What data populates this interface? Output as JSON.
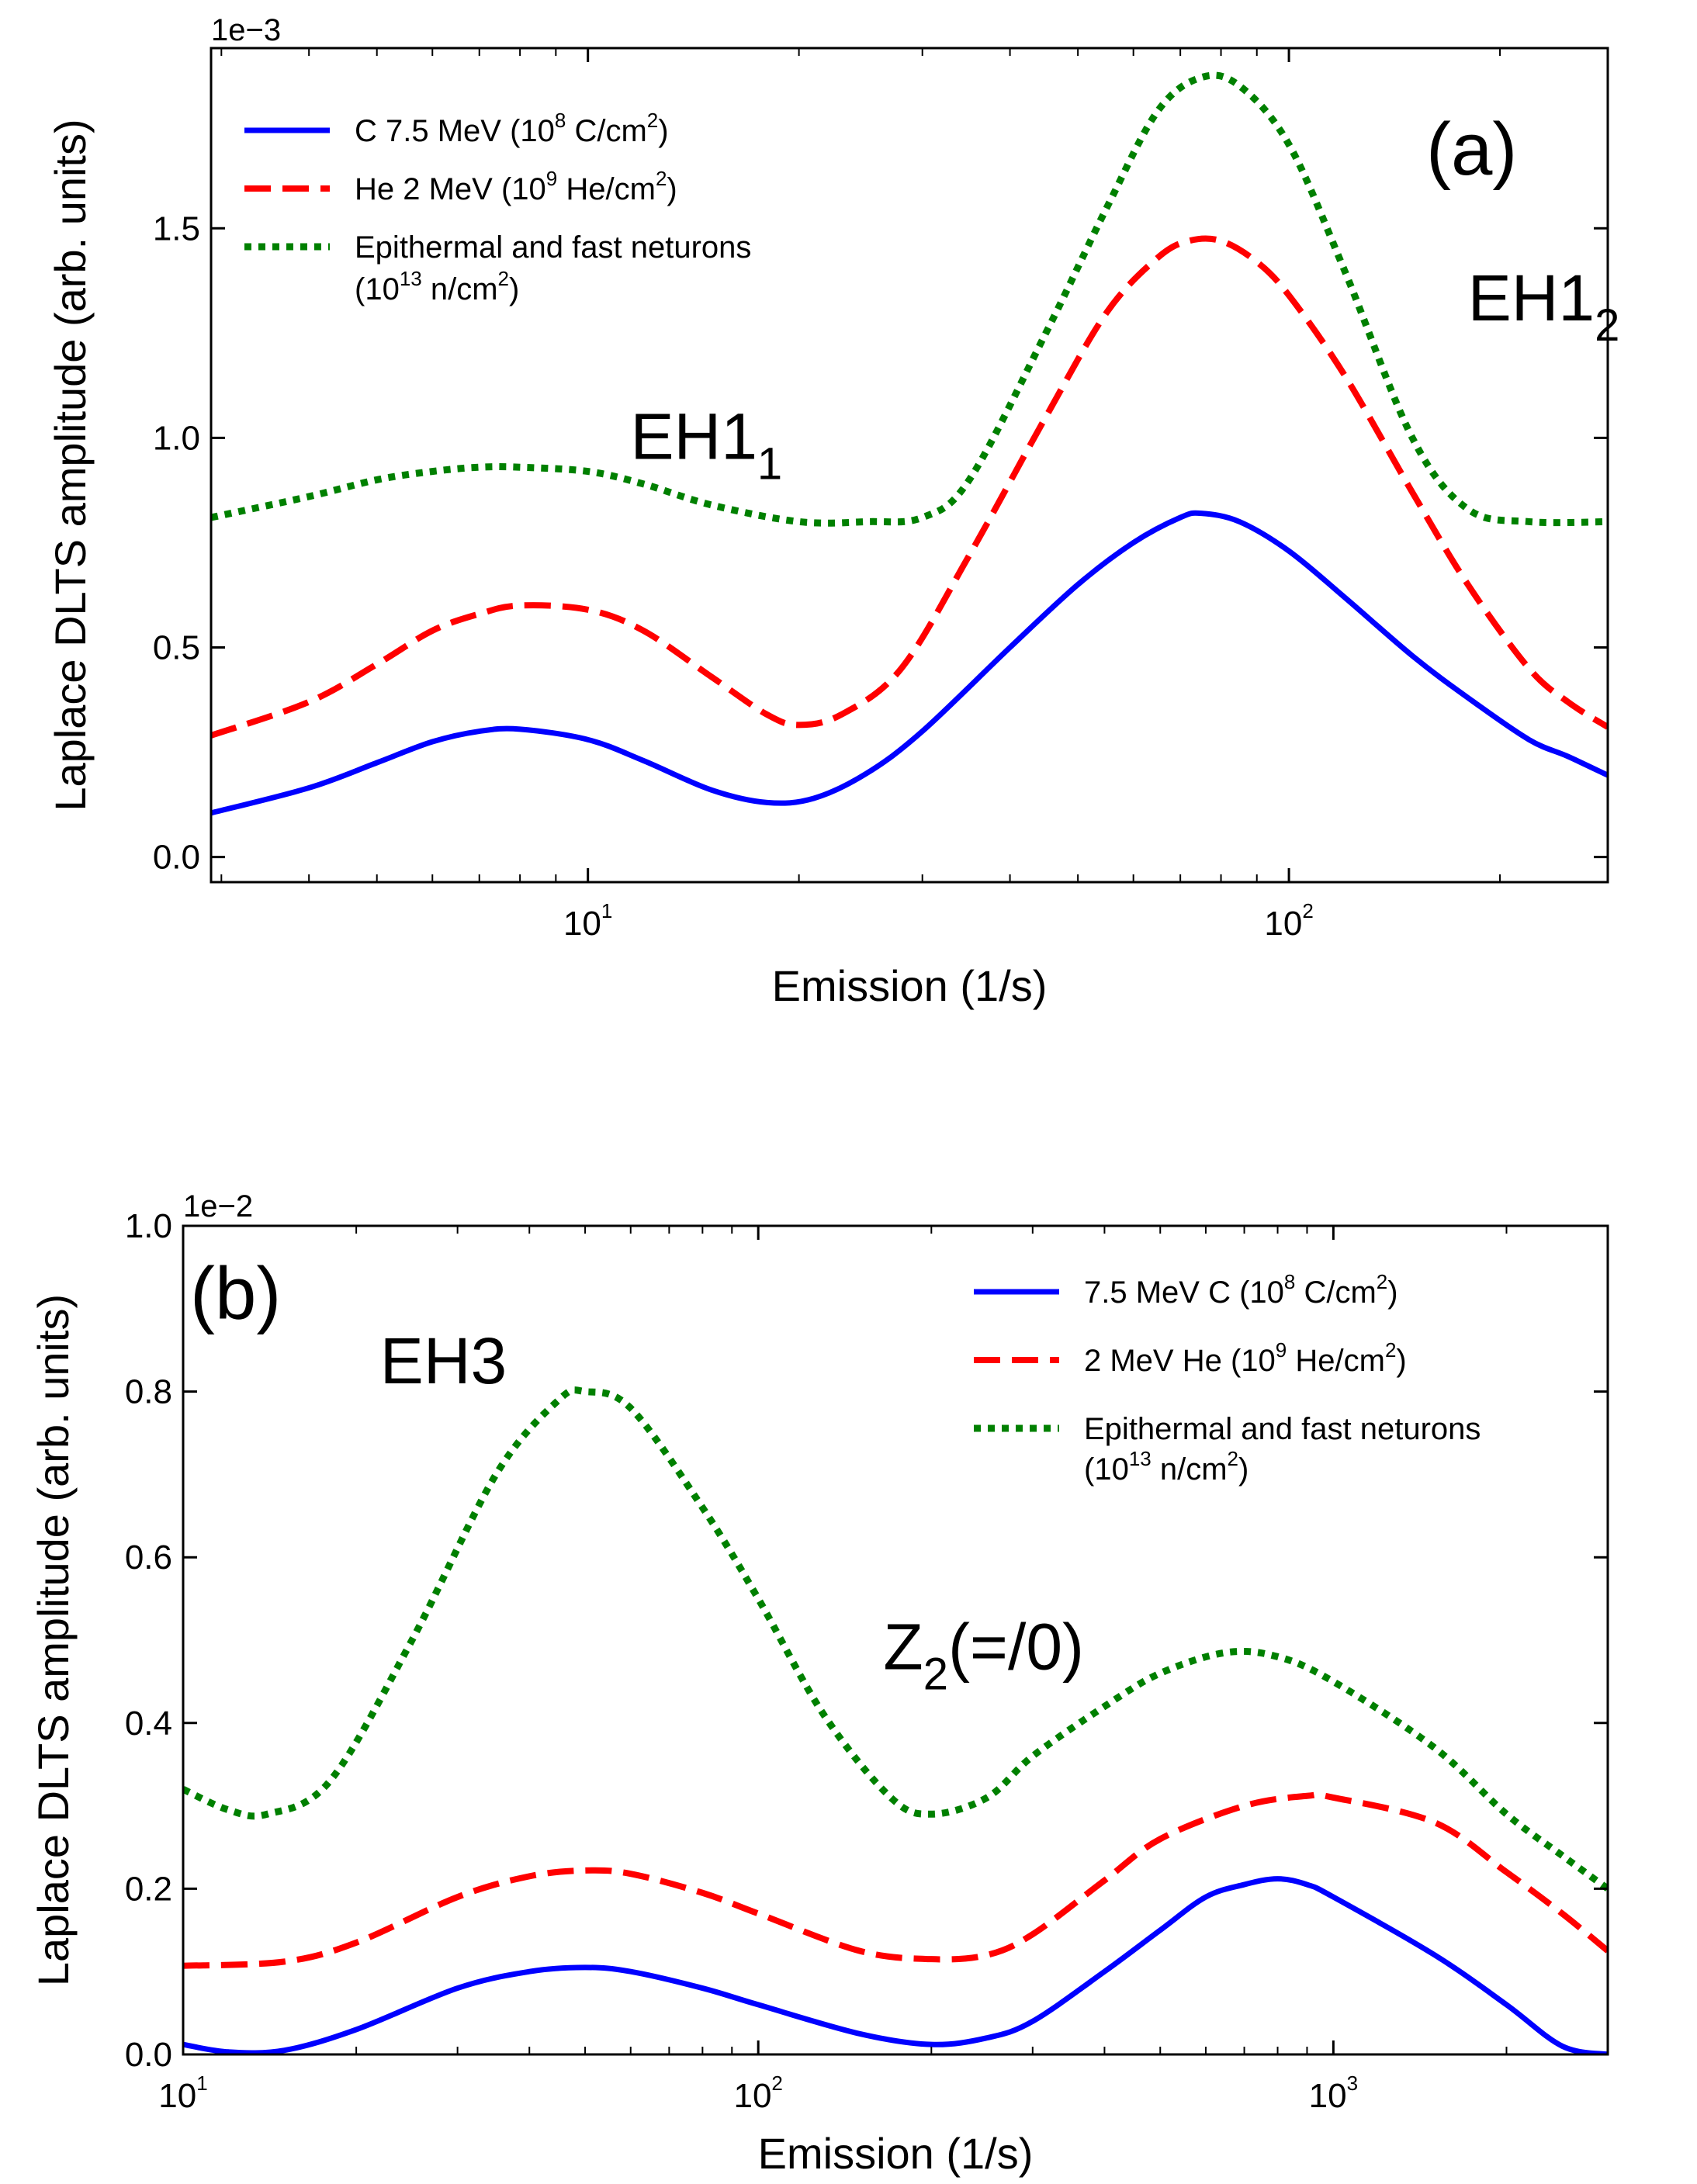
{
  "chart_data": [
    {
      "id": "a",
      "type": "line",
      "panel_label": "(a)",
      "xlabel": "Emission (1/s)",
      "ylabel": "Laplace DLTS amplitude (arb. units)",
      "xscale": "log",
      "xlim": [
        2.9,
        285
      ],
      "ylim": [
        -0.06,
        1.93
      ],
      "y_offset_text": "1e−3",
      "x_ticks": [
        {
          "value": 10,
          "base": "10",
          "exp": "1"
        },
        {
          "value": 100,
          "base": "10",
          "exp": "2"
        }
      ],
      "y_ticks": [
        {
          "value": 0.0,
          "label": "0.0"
        },
        {
          "value": 0.5,
          "label": "0.5"
        },
        {
          "value": 1.0,
          "label": "1.0"
        },
        {
          "value": 1.5,
          "label": "1.5"
        }
      ],
      "legend_position": "top-left",
      "annotations": [
        {
          "id": "eh1-1",
          "base": "EH1",
          "sub": "1",
          "x": 11.5,
          "y": 0.95
        },
        {
          "id": "eh1-2",
          "base": "EH1",
          "sub": "2",
          "x": 180,
          "y": 1.28
        }
      ],
      "series": [
        {
          "id": "c",
          "color": "#0000ff",
          "style": "solid",
          "legend_lines": [
            [
              {
                "t": "C 7.5 MeV (10"
              },
              {
                "t": "8",
                "sup": true
              },
              {
                "t": " C/cm"
              },
              {
                "t": "2",
                "sup": true
              },
              {
                "t": ")"
              }
            ]
          ],
          "points": [
            [
              2.9,
              0.105
            ],
            [
              4,
              0.165
            ],
            [
              5,
              0.225
            ],
            [
              6,
              0.275
            ],
            [
              7,
              0.3
            ],
            [
              8,
              0.305
            ],
            [
              10,
              0.28
            ],
            [
              12,
              0.23
            ],
            [
              15,
              0.16
            ],
            [
              18,
              0.13
            ],
            [
              21,
              0.14
            ],
            [
              25,
              0.2
            ],
            [
              30,
              0.3
            ],
            [
              40,
              0.5
            ],
            [
              50,
              0.65
            ],
            [
              60,
              0.75
            ],
            [
              70,
              0.81
            ],
            [
              75,
              0.82
            ],
            [
              85,
              0.8
            ],
            [
              100,
              0.73
            ],
            [
              120,
              0.62
            ],
            [
              150,
              0.48
            ],
            [
              180,
              0.38
            ],
            [
              220,
              0.28
            ],
            [
              250,
              0.24
            ],
            [
              285,
              0.195
            ]
          ]
        },
        {
          "id": "he",
          "color": "#ff0000",
          "style": "dashed",
          "legend_lines": [
            [
              {
                "t": "He 2 MeV (10"
              },
              {
                "t": "9",
                "sup": true
              },
              {
                "t": " He/cm"
              },
              {
                "t": "2",
                "sup": true
              },
              {
                "t": ")"
              }
            ]
          ],
          "points": [
            [
              2.9,
              0.29
            ],
            [
              4,
              0.37
            ],
            [
              5,
              0.46
            ],
            [
              6,
              0.54
            ],
            [
              7,
              0.58
            ],
            [
              8,
              0.6
            ],
            [
              10,
              0.59
            ],
            [
              12,
              0.54
            ],
            [
              15,
              0.43
            ],
            [
              18,
              0.34
            ],
            [
              20,
              0.315
            ],
            [
              23,
              0.34
            ],
            [
              28,
              0.45
            ],
            [
              35,
              0.72
            ],
            [
              45,
              1.05
            ],
            [
              55,
              1.3
            ],
            [
              65,
              1.43
            ],
            [
              72,
              1.47
            ],
            [
              80,
              1.47
            ],
            [
              90,
              1.42
            ],
            [
              100,
              1.34
            ],
            [
              120,
              1.15
            ],
            [
              150,
              0.87
            ],
            [
              180,
              0.65
            ],
            [
              220,
              0.45
            ],
            [
              250,
              0.37
            ],
            [
              285,
              0.31
            ]
          ]
        },
        {
          "id": "n",
          "color": "#008000",
          "style": "dotted",
          "legend_lines": [
            [
              {
                "t": "Epithermal and fast neturons"
              }
            ],
            [
              {
                "t": "(10"
              },
              {
                "t": "13",
                "sup": true
              },
              {
                "t": " n/cm"
              },
              {
                "t": "2",
                "sup": true
              },
              {
                "t": ")"
              }
            ]
          ],
          "points": [
            [
              2.9,
              0.81
            ],
            [
              4,
              0.86
            ],
            [
              5,
              0.9
            ],
            [
              6,
              0.92
            ],
            [
              7,
              0.93
            ],
            [
              8,
              0.93
            ],
            [
              10,
              0.92
            ],
            [
              12,
              0.89
            ],
            [
              15,
              0.84
            ],
            [
              20,
              0.8
            ],
            [
              25,
              0.8
            ],
            [
              30,
              0.81
            ],
            [
              35,
              0.9
            ],
            [
              45,
              1.25
            ],
            [
              55,
              1.55
            ],
            [
              65,
              1.78
            ],
            [
              75,
              1.86
            ],
            [
              85,
              1.84
            ],
            [
              100,
              1.7
            ],
            [
              120,
              1.4
            ],
            [
              150,
              1.0
            ],
            [
              180,
              0.83
            ],
            [
              220,
              0.8
            ],
            [
              285,
              0.8
            ]
          ]
        }
      ]
    },
    {
      "id": "b",
      "type": "line",
      "panel_label": "(b)",
      "xlabel": "Emission (1/s)",
      "ylabel": "Laplace DLTS amplitude (arb. units)",
      "xscale": "log",
      "xlim": [
        10,
        3000
      ],
      "ylim": [
        0.0,
        1.0
      ],
      "y_offset_text": "1e−2",
      "x_ticks": [
        {
          "value": 10,
          "base": "10",
          "exp": "1"
        },
        {
          "value": 100,
          "base": "10",
          "exp": "2"
        },
        {
          "value": 1000,
          "base": "10",
          "exp": "3"
        }
      ],
      "y_ticks": [
        {
          "value": 0.0,
          "label": "0.0"
        },
        {
          "value": 0.2,
          "label": "0.2"
        },
        {
          "value": 0.4,
          "label": "0.4"
        },
        {
          "value": 0.6,
          "label": "0.6"
        },
        {
          "value": 0.8,
          "label": "0.8"
        },
        {
          "value": 1.0,
          "label": "1.0"
        }
      ],
      "legend_position": "top-right",
      "annotations": [
        {
          "id": "eh3",
          "base": "EH3",
          "sub": "",
          "x": 22,
          "y": 0.81
        },
        {
          "id": "z2",
          "base": "Z",
          "sub": "2",
          "rest": "(=/0)",
          "x": 165,
          "y": 0.465
        }
      ],
      "series": [
        {
          "id": "c",
          "color": "#0000ff",
          "style": "solid",
          "legend_lines": [
            [
              {
                "t": "7.5 MeV C (10"
              },
              {
                "t": "8",
                "sup": true
              },
              {
                "t": " C/cm"
              },
              {
                "t": "2",
                "sup": true
              },
              {
                "t": ")"
              }
            ]
          ],
          "points": [
            [
              10,
              0.012
            ],
            [
              12,
              0.003
            ],
            [
              15,
              0.005
            ],
            [
              20,
              0.03
            ],
            [
              30,
              0.08
            ],
            [
              40,
              0.1
            ],
            [
              50,
              0.105
            ],
            [
              60,
              0.1
            ],
            [
              80,
              0.08
            ],
            [
              100,
              0.06
            ],
            [
              150,
              0.025
            ],
            [
              200,
              0.012
            ],
            [
              250,
              0.02
            ],
            [
              300,
              0.04
            ],
            [
              400,
              0.1
            ],
            [
              500,
              0.15
            ],
            [
              600,
              0.19
            ],
            [
              700,
              0.205
            ],
            [
              800,
              0.212
            ],
            [
              900,
              0.205
            ],
            [
              1000,
              0.19
            ],
            [
              1500,
              0.12
            ],
            [
              2000,
              0.06
            ],
            [
              2500,
              0.01
            ],
            [
              3000,
              0.0
            ]
          ]
        },
        {
          "id": "he",
          "color": "#ff0000",
          "style": "dashed",
          "legend_lines": [
            [
              {
                "t": "2 MeV He (10"
              },
              {
                "t": "9",
                "sup": true
              },
              {
                "t": " He/cm"
              },
              {
                "t": "2",
                "sup": true
              },
              {
                "t": ")"
              }
            ]
          ],
          "points": [
            [
              10,
              0.107
            ],
            [
              15,
              0.112
            ],
            [
              20,
              0.135
            ],
            [
              30,
              0.19
            ],
            [
              40,
              0.215
            ],
            [
              50,
              0.222
            ],
            [
              60,
              0.218
            ],
            [
              80,
              0.195
            ],
            [
              100,
              0.17
            ],
            [
              150,
              0.125
            ],
            [
              200,
              0.115
            ],
            [
              250,
              0.12
            ],
            [
              300,
              0.145
            ],
            [
              400,
              0.21
            ],
            [
              500,
              0.26
            ],
            [
              700,
              0.3
            ],
            [
              900,
              0.312
            ],
            [
              1000,
              0.31
            ],
            [
              1500,
              0.28
            ],
            [
              2000,
              0.22
            ],
            [
              2500,
              0.17
            ],
            [
              3000,
              0.125
            ]
          ]
        },
        {
          "id": "n",
          "color": "#008000",
          "style": "dotted",
          "legend_lines": [
            [
              {
                "t": "Epithermal and fast neturons"
              }
            ],
            [
              {
                "t": "(10"
              },
              {
                "t": "13",
                "sup": true
              },
              {
                "t": " n/cm"
              },
              {
                "t": "2",
                "sup": true
              },
              {
                "t": ")"
              }
            ]
          ],
          "points": [
            [
              10,
              0.32
            ],
            [
              12,
              0.295
            ],
            [
              14,
              0.29
            ],
            [
              18,
              0.33
            ],
            [
              25,
              0.5
            ],
            [
              35,
              0.7
            ],
            [
              45,
              0.79
            ],
            [
              50,
              0.8
            ],
            [
              60,
              0.78
            ],
            [
              80,
              0.66
            ],
            [
              100,
              0.55
            ],
            [
              130,
              0.41
            ],
            [
              170,
              0.31
            ],
            [
              200,
              0.29
            ],
            [
              250,
              0.31
            ],
            [
              300,
              0.36
            ],
            [
              400,
              0.42
            ],
            [
              500,
              0.46
            ],
            [
              650,
              0.485
            ],
            [
              800,
              0.48
            ],
            [
              1000,
              0.45
            ],
            [
              1500,
              0.37
            ],
            [
              2000,
              0.29
            ],
            [
              2500,
              0.24
            ],
            [
              3000,
              0.2
            ]
          ]
        }
      ]
    }
  ]
}
